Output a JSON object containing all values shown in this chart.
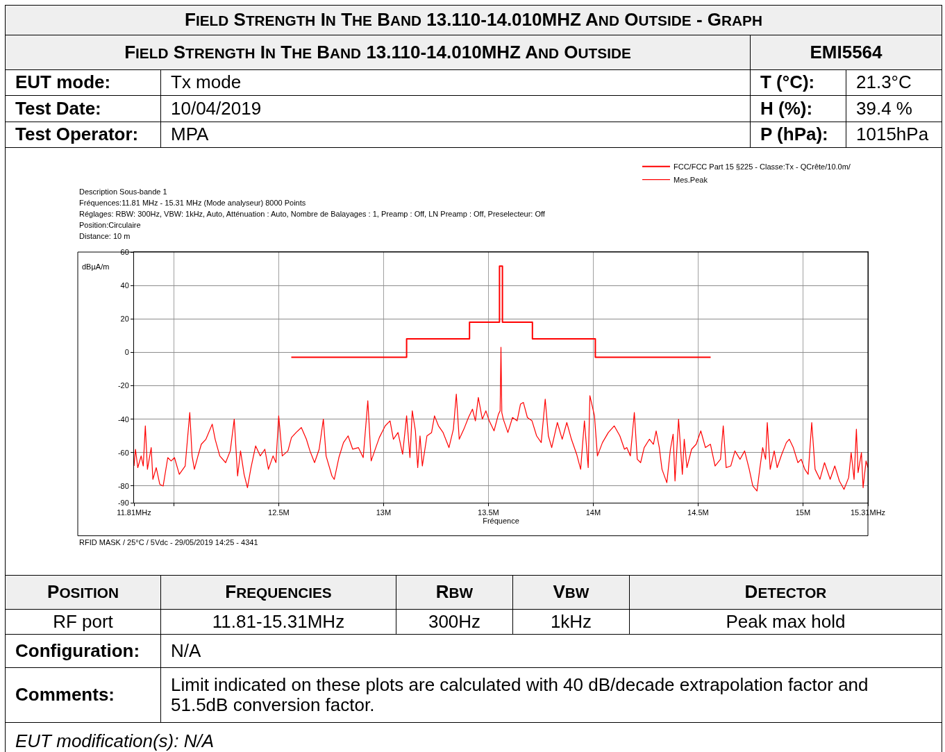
{
  "chart_data": {
    "type": "line",
    "title": "FIELD STRENGTH IN THE BAND 13.110-14.010MHZ AND OUTSIDE - GRAPH",
    "subtitle": "FIELD STRENGTH IN THE BAND 13.110-14.010MHZ AND OUTSIDE",
    "xlabel": "Fréquence",
    "ylabel": "dBµA/m",
    "xlim": [
      11.81,
      15.31
    ],
    "xticks": [
      {
        "value": 11.81,
        "label": "11.81MHz"
      },
      {
        "value": 12,
        "label": null
      },
      {
        "value": 12.5,
        "label": "12.5M"
      },
      {
        "value": 13,
        "label": "13M"
      },
      {
        "value": 13.5,
        "label": "13.5M"
      },
      {
        "value": 14,
        "label": "14M"
      },
      {
        "value": 14.5,
        "label": "14.5M"
      },
      {
        "value": 15,
        "label": "15M"
      },
      {
        "value": 15.31,
        "label": "15.31MHz"
      }
    ],
    "ylim": [
      -90,
      60
    ],
    "yticks": [
      60,
      40,
      20,
      0,
      -20,
      -40,
      -60,
      -80,
      -90
    ],
    "grid": true,
    "legend": "top right",
    "series": [
      {
        "name": "FCC/FCC Part 15 §225 - Classe:Tx - QCrête/10.0m/",
        "type": "step",
        "color": "#ff0000",
        "x": [
          12.56,
          13.11,
          13.41,
          13.553,
          13.567,
          13.71,
          14.01,
          14.56
        ],
        "values": [
          -2.9,
          8.1,
          18,
          51.6,
          18,
          8.1,
          -2.9,
          -2.9
        ]
      },
      {
        "name": "Mes.Peak",
        "color": "#ff0000",
        "x": [
          11.81,
          11.817,
          11.828,
          11.844,
          11.854,
          11.864,
          11.874,
          11.892,
          11.9,
          11.916,
          11.933,
          11.949,
          11.971,
          11.987,
          12.003,
          12.026,
          12.054,
          12.076,
          12.087,
          12.098,
          12.115,
          12.131,
          12.153,
          12.183,
          12.197,
          12.219,
          12.247,
          12.269,
          12.288,
          12.304,
          12.318,
          12.335,
          12.351,
          12.368,
          12.39,
          12.412,
          12.434,
          12.451,
          12.473,
          12.487,
          12.5,
          12.517,
          12.544,
          12.561,
          12.583,
          12.608,
          12.632,
          12.649,
          12.671,
          12.693,
          12.713,
          12.726,
          12.754,
          12.765,
          12.787,
          12.809,
          12.831,
          12.853,
          12.88,
          12.903,
          12.925,
          12.941,
          12.963,
          12.98,
          12.996,
          13.008,
          13.031,
          13.047,
          13.069,
          13.091,
          13.11,
          13.126,
          13.137,
          13.152,
          13.163,
          13.174,
          13.185,
          13.207,
          13.229,
          13.243,
          13.262,
          13.284,
          13.312,
          13.333,
          13.347,
          13.361,
          13.383,
          13.405,
          13.424,
          13.438,
          13.452,
          13.471,
          13.488,
          13.504,
          13.527,
          13.548,
          13.556,
          13.56,
          13.564,
          13.571,
          13.593,
          13.615,
          13.637,
          13.653,
          13.667,
          13.686,
          13.708,
          13.73,
          13.752,
          13.771,
          13.786,
          13.802,
          13.829,
          13.852,
          13.874,
          13.896,
          13.921,
          13.94,
          13.958,
          13.976,
          13.984,
          14.006,
          14.02,
          14.044,
          14.072,
          14.1,
          14.127,
          14.149,
          14.16,
          14.177,
          14.196,
          14.21,
          14.226,
          14.243,
          14.268,
          14.287,
          14.3,
          14.315,
          14.328,
          14.351,
          14.368,
          14.381,
          14.39,
          14.407,
          14.425,
          14.434,
          14.447,
          14.469,
          14.491,
          14.513,
          14.535,
          14.559,
          14.581,
          14.607,
          14.62,
          14.634,
          14.656,
          14.676,
          14.7,
          14.722,
          14.744,
          14.761,
          14.781,
          14.794,
          14.808,
          14.822,
          14.83,
          14.844,
          14.863,
          14.877,
          14.899,
          14.921,
          14.935,
          14.954,
          14.976,
          14.992,
          15.009,
          15.025,
          15.042,
          15.058,
          15.081,
          15.103,
          15.13,
          15.152,
          15.174,
          15.196,
          15.218,
          15.23,
          15.244,
          15.255,
          15.263,
          15.279,
          15.287,
          15.301,
          15.31
        ],
        "values": [
          -68,
          -58,
          -69,
          -62,
          -68,
          -44,
          -70,
          -57,
          -76,
          -69,
          -79,
          -80,
          -63,
          -65,
          -63,
          -73,
          -68,
          -36,
          -62,
          -70,
          -62,
          -55,
          -52,
          -43,
          -52,
          -62,
          -66,
          -59,
          -40,
          -74,
          -59,
          -73,
          -81,
          -69,
          -56,
          -62,
          -58,
          -70,
          -62,
          -66,
          -38,
          -62,
          -59,
          -51,
          -48,
          -45,
          -52,
          -59,
          -66,
          -58,
          -40,
          -62,
          -74,
          -76,
          -63,
          -54,
          -50,
          -58,
          -57,
          -63,
          -29,
          -65,
          -57,
          -51,
          -47,
          -44,
          -41,
          -52,
          -48,
          -61,
          -38,
          -63,
          -35,
          -47,
          -69,
          -50,
          -68,
          -50,
          -48,
          -38,
          -44,
          -48,
          -57,
          -46,
          -25,
          -52,
          -46,
          -39,
          -34,
          -41,
          -27,
          -40,
          -35,
          -41,
          -47,
          -37,
          -35,
          3,
          -36,
          -40,
          -48,
          -39,
          -41,
          -31,
          -30,
          -39,
          -41,
          -50,
          -54,
          -28,
          -50,
          -57,
          -42,
          -52,
          -42,
          -52,
          -61,
          -70,
          -41,
          -69,
          -26,
          -38,
          -62,
          -54,
          -48,
          -44,
          -50,
          -58,
          -57,
          -62,
          -36,
          -64,
          -66,
          -57,
          -52,
          -55,
          -47,
          -57,
          -70,
          -78,
          -58,
          -49,
          -77,
          -40,
          -73,
          -52,
          -69,
          -58,
          -55,
          -47,
          -57,
          -55,
          -68,
          -64,
          -44,
          -69,
          -68,
          -59,
          -64,
          -59,
          -70,
          -80,
          -83,
          -70,
          -57,
          -64,
          -42,
          -70,
          -59,
          -69,
          -61,
          -54,
          -52,
          -57,
          -66,
          -64,
          -70,
          -73,
          -42,
          -70,
          -76,
          -66,
          -76,
          -68,
          -77,
          -82,
          -75,
          -60,
          -76,
          -46,
          -72,
          -60,
          -81,
          -65,
          -69
        ]
      }
    ],
    "annotations": [
      "EMI5564",
      "EUT mode:",
      "Tx mode",
      "T (°C):",
      "21.3°C",
      "Test Date:",
      "10/04/2019",
      "H (%):",
      "39.4 %",
      "Test Operator:",
      "MPA",
      "P (hPa):",
      "1015hPa",
      "Description Sous-bande 1",
      "Fréquences:11.81 MHz - 15.31 MHz (Mode analyseur) 8000 Points",
      "Réglages: RBW: 300Hz, VBW: 1kHz, Auto, Atténuation : Auto, Nombre de Balayages : 1, Preamp : Off, LN Preamp : Off, Preselecteur: Off",
      "Position:Circulaire",
      "Distance: 10 m",
      "RFID MASK / 25°C / 5Vdc - 29/05/2019 14:25 - 4341",
      "POSITION",
      "FREQUENCIES",
      "RBW",
      "VBW",
      "DETECTOR",
      "RF port",
      "11.81-15.31MHz",
      "300Hz",
      "1kHz",
      "Peak max hold",
      "Configuration:",
      "N/A",
      "Comments:",
      "Limit indicated on these plots are calculated with 40 dB/decade extrapolation factor and 51.5dB conversion factor.",
      "EUT modification(s): N/A"
    ]
  }
}
